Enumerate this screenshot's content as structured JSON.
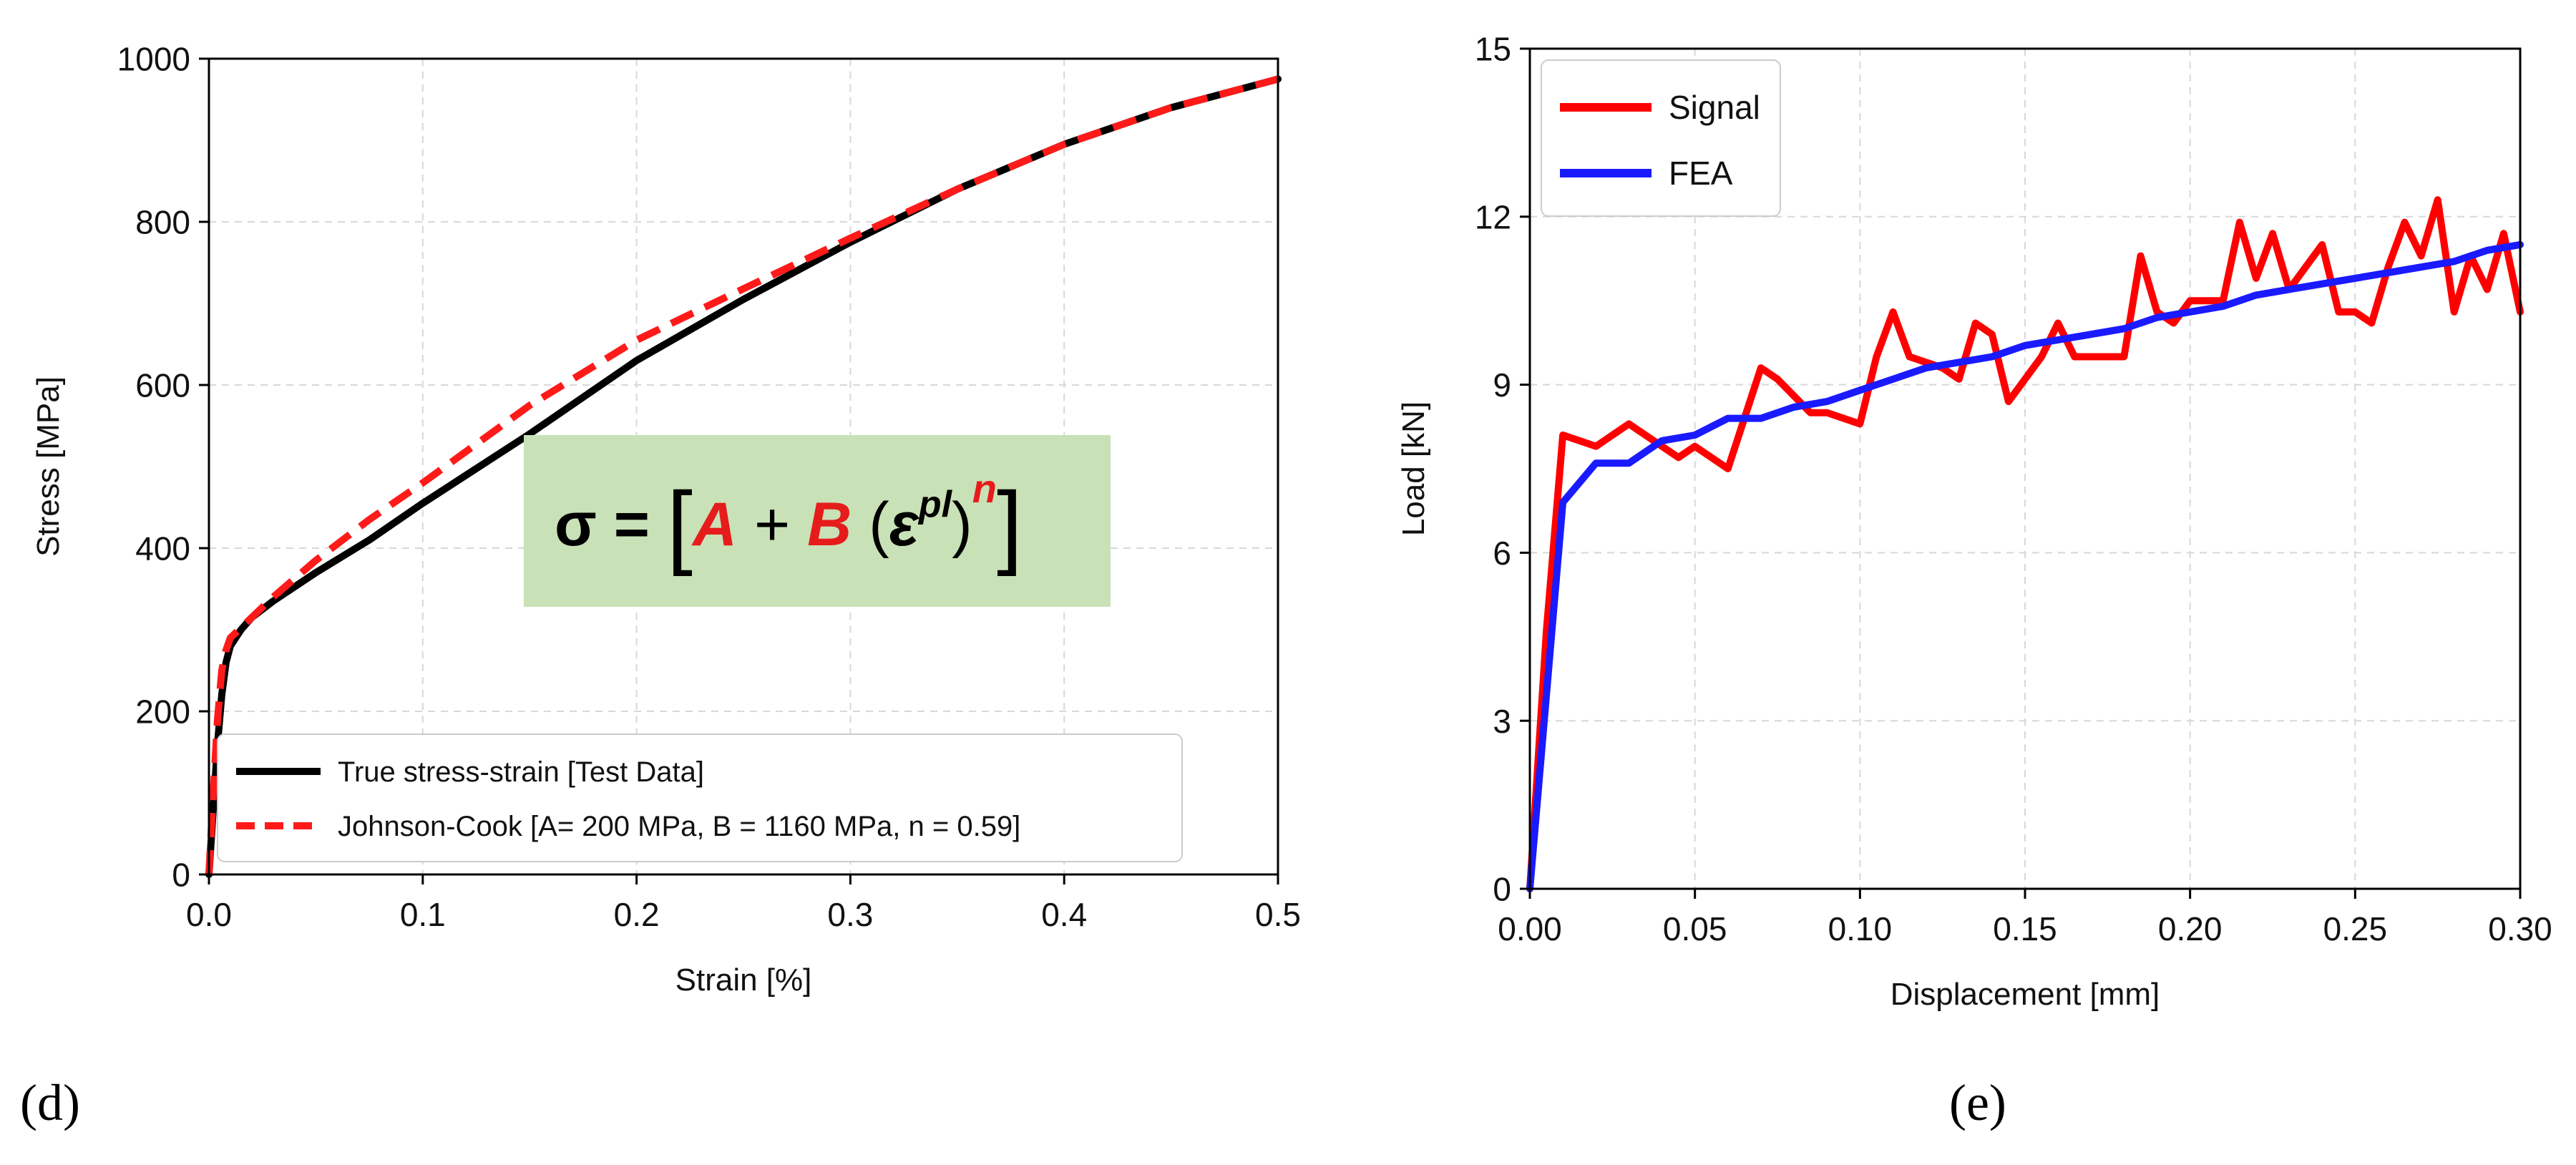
{
  "chart_data": [
    {
      "type": "line",
      "panel_label": "(d)",
      "title": "",
      "xlabel": "Strain [%]",
      "ylabel": "Stress [MPa]",
      "xlim": [
        0,
        0.5
      ],
      "ylim": [
        0,
        1000
      ],
      "xticks": [
        "0.0",
        "0.1",
        "0.2",
        "0.3",
        "0.4",
        "0.5"
      ],
      "yticks": [
        "0",
        "200",
        "400",
        "600",
        "800",
        "1000"
      ],
      "grid": true,
      "legend_position": "bottom-right",
      "annotation": "σ = [A + B (ε^pl)^n]",
      "series": [
        {
          "name": "True stress-strain [Test Data]",
          "color": "#000000",
          "style": "solid",
          "x": [
            0,
            0.002,
            0.004,
            0.006,
            0.008,
            0.01,
            0.015,
            0.02,
            0.03,
            0.05,
            0.075,
            0.1,
            0.15,
            0.2,
            0.25,
            0.3,
            0.35,
            0.4,
            0.45,
            0.5
          ],
          "y": [
            0,
            80,
            160,
            220,
            260,
            280,
            300,
            315,
            335,
            370,
            410,
            455,
            540,
            630,
            705,
            775,
            840,
            895,
            940,
            975
          ]
        },
        {
          "name": "Johnson-Cook [A= 200 MPa, B = 1160 MPa, n = 0.59]",
          "color": "#ff1a1a",
          "style": "dashed",
          "x": [
            0,
            0.002,
            0.004,
            0.006,
            0.008,
            0.01,
            0.02,
            0.03,
            0.05,
            0.075,
            0.1,
            0.15,
            0.2,
            0.25,
            0.3,
            0.35,
            0.4,
            0.45,
            0.5
          ],
          "y": [
            0,
            100,
            190,
            250,
            275,
            290,
            315,
            340,
            385,
            435,
            480,
            575,
            655,
            718,
            780,
            840,
            895,
            940,
            975
          ]
        }
      ]
    },
    {
      "type": "line",
      "panel_label": "(e)",
      "title": "",
      "xlabel": "Displacement [mm]",
      "ylabel": "Load [kN]",
      "xlim": [
        0,
        0.3
      ],
      "ylim": [
        0,
        15
      ],
      "xticks": [
        "0.00",
        "0.05",
        "0.10",
        "0.15",
        "0.20",
        "0.25",
        "0.30"
      ],
      "yticks": [
        "0",
        "3",
        "6",
        "9",
        "12",
        "15"
      ],
      "grid": true,
      "legend_position": "top-left",
      "series": [
        {
          "name": "Signal",
          "color": "#ff0000",
          "x": [
            0,
            0.005,
            0.01,
            0.02,
            0.03,
            0.035,
            0.045,
            0.05,
            0.06,
            0.07,
            0.075,
            0.085,
            0.09,
            0.1,
            0.105,
            0.11,
            0.115,
            0.125,
            0.13,
            0.135,
            0.14,
            0.145,
            0.155,
            0.16,
            0.165,
            0.175,
            0.18,
            0.185,
            0.19,
            0.195,
            0.2,
            0.205,
            0.21,
            0.215,
            0.22,
            0.225,
            0.23,
            0.24,
            0.245,
            0.25,
            0.255,
            0.26,
            0.265,
            0.27,
            0.275,
            0.28,
            0.285,
            0.29,
            0.295,
            0.3
          ],
          "y": [
            0,
            4.6,
            8.1,
            7.9,
            8.3,
            8.1,
            7.7,
            7.9,
            7.5,
            9.3,
            9.1,
            8.5,
            8.5,
            8.3,
            9.5,
            10.3,
            9.5,
            9.3,
            9.1,
            10.1,
            9.9,
            8.7,
            9.5,
            10.1,
            9.5,
            9.5,
            9.5,
            11.3,
            10.3,
            10.1,
            10.5,
            10.5,
            10.5,
            11.9,
            10.9,
            11.7,
            10.7,
            11.5,
            10.3,
            10.3,
            10.1,
            11.1,
            11.9,
            11.3,
            12.3,
            10.3,
            11.3,
            10.7,
            11.7,
            10.3
          ]
        },
        {
          "name": "FEA",
          "color": "#1a1aff",
          "x": [
            0,
            0.01,
            0.02,
            0.03,
            0.04,
            0.05,
            0.06,
            0.07,
            0.08,
            0.09,
            0.1,
            0.11,
            0.12,
            0.13,
            0.14,
            0.15,
            0.16,
            0.17,
            0.18,
            0.19,
            0.2,
            0.21,
            0.22,
            0.23,
            0.24,
            0.25,
            0.26,
            0.27,
            0.28,
            0.29,
            0.3
          ],
          "y": [
            0,
            6.9,
            7.6,
            7.6,
            8.0,
            8.1,
            8.4,
            8.4,
            8.6,
            8.7,
            8.9,
            9.1,
            9.3,
            9.4,
            9.5,
            9.7,
            9.8,
            9.9,
            10.0,
            10.2,
            10.3,
            10.4,
            10.6,
            10.7,
            10.8,
            10.9,
            11.0,
            11.1,
            11.2,
            11.4,
            11.5
          ]
        }
      ]
    }
  ]
}
